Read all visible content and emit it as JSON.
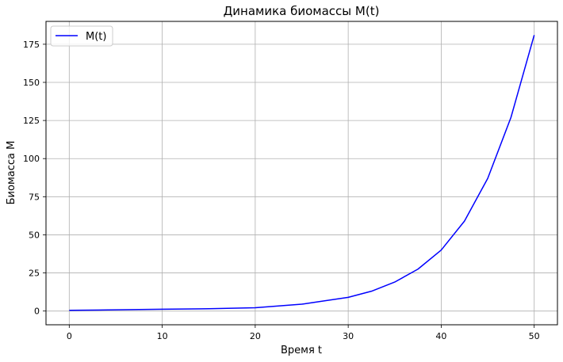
{
  "chart_data": {
    "type": "line",
    "title": "Динамика биомассы M(t)",
    "xlabel": "Время t",
    "ylabel": "Биомасса M",
    "xlim": [
      -2.5,
      52.5
    ],
    "ylim": [
      -9,
      190
    ],
    "xticks": [
      0,
      10,
      20,
      30,
      40,
      50
    ],
    "yticks": [
      0,
      25,
      50,
      75,
      100,
      125,
      150,
      175
    ],
    "grid": true,
    "legend_position": "top-left",
    "series": [
      {
        "name": "M(t)",
        "color": "#0000ff",
        "x": [
          0,
          5,
          10,
          15,
          20,
          25,
          30,
          32.5,
          35,
          37.5,
          40,
          42.5,
          45,
          47.5,
          50
        ],
        "y": [
          0.5,
          0.8,
          1.2,
          1.5,
          2.2,
          4.5,
          9,
          13,
          19,
          27.5,
          40,
          59,
          87,
          127,
          181
        ]
      }
    ]
  }
}
